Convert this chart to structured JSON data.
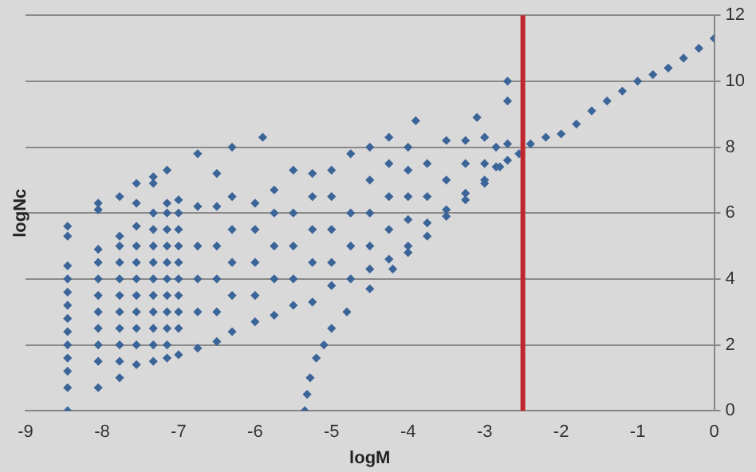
{
  "chart_data": {
    "type": "scatter",
    "xlabel": "logM",
    "ylabel": "logNc",
    "color": "#3b6498",
    "marker": "diamond",
    "grid": "y",
    "xlim": [
      -9,
      0
    ],
    "xticks": [
      -9,
      -8,
      -7,
      -6,
      -5,
      -4,
      -3,
      -2,
      -1,
      0
    ],
    "ylim": [
      0,
      12
    ],
    "yticks": [
      0,
      2,
      4,
      6,
      8,
      10,
      12
    ],
    "ref_lines": [
      {
        "axis": "x",
        "value": -2.5,
        "color": "#c0272d"
      }
    ],
    "x": [
      -8.45,
      -8.45,
      -8.45,
      -8.45,
      -8.45,
      -8.45,
      -8.45,
      -8.45,
      -8.45,
      -8.45,
      -8.45,
      -8.45,
      -8.45,
      -8.05,
      -8.05,
      -8.05,
      -8.05,
      -8.05,
      -8.05,
      -8.05,
      -8.05,
      -8.05,
      -8.05,
      -8.05,
      -7.77,
      -7.77,
      -7.77,
      -7.77,
      -7.77,
      -7.77,
      -7.77,
      -7.77,
      -7.77,
      -7.77,
      -7.77,
      -7.55,
      -7.55,
      -7.55,
      -7.55,
      -7.55,
      -7.55,
      -7.55,
      -7.55,
      -7.55,
      -7.55,
      -7.55,
      -7.33,
      -7.33,
      -7.33,
      -7.33,
      -7.33,
      -7.33,
      -7.33,
      -7.33,
      -7.33,
      -7.33,
      -7.33,
      -7.33,
      -7.15,
      -7.15,
      -7.15,
      -7.15,
      -7.15,
      -7.15,
      -7.15,
      -7.15,
      -7.15,
      -7.15,
      -7.15,
      -7.15,
      -7,
      -7,
      -7,
      -7,
      -7,
      -7,
      -7,
      -7,
      -7,
      -7,
      -6.75,
      -6.75,
      -6.75,
      -6.75,
      -6.75,
      -6.75,
      -6.5,
      -6.5,
      -6.5,
      -6.5,
      -6.5,
      -6.5,
      -6.3,
      -6.3,
      -6.3,
      -6.3,
      -6.3,
      -6.3,
      -6,
      -6,
      -6,
      -6,
      -6,
      -5.9,
      -5.75,
      -5.75,
      -5.75,
      -5.75,
      -5.75,
      -5.5,
      -5.5,
      -5.5,
      -5.5,
      -5.5,
      -5.25,
      -5.25,
      -5.25,
      -5.25,
      -5.25,
      -5,
      -5,
      -5,
      -5,
      -5,
      -4.75,
      -4.75,
      -4.75,
      -4.75,
      -4.5,
      -4.5,
      -4.5,
      -4.5,
      -4.5,
      -4.25,
      -4.25,
      -4.25,
      -4.25,
      -4.25,
      -4,
      -4,
      -4,
      -4,
      -4,
      -3.9,
      -3.75,
      -3.75,
      -3.75,
      -3.5,
      -3.5,
      -3.5,
      -3.25,
      -3.25,
      -3.25,
      -3.1,
      -3,
      -3,
      -3,
      -2.85,
      -2.85,
      -2.7,
      -2.7,
      -2.7,
      -2.7,
      -5.35,
      -5.32,
      -5.28,
      -5.2,
      -5.1,
      -5,
      -4.8,
      -4.5,
      -4.2,
      -4,
      -3.75,
      -3.5,
      -3.25,
      -3,
      -2.8,
      -2.55,
      -2.4,
      -2.2,
      -2,
      -1.8,
      -1.6,
      -1.4,
      -1.2,
      -1,
      -0.8,
      -0.6,
      -0.4,
      -0.2,
      0
    ],
    "values": [
      0,
      0.7,
      1.2,
      1.6,
      2,
      2.4,
      2.8,
      3.2,
      3.6,
      4,
      4.4,
      5.3,
      5.6,
      0.7,
      1.5,
      2,
      2.5,
      3,
      3.5,
      4,
      4.5,
      4.9,
      6.1,
      6.3,
      1,
      1.5,
      2,
      2.5,
      3,
      3.5,
      4,
      4.5,
      5,
      5.3,
      6.5,
      1.4,
      2,
      2.5,
      3,
      3.5,
      4,
      4.5,
      5,
      5.6,
      6.3,
      6.9,
      1.5,
      2,
      2.5,
      3,
      3.5,
      4,
      4.5,
      5,
      5.5,
      6,
      6.9,
      7.1,
      1.6,
      2,
      2.5,
      3,
      3.5,
      4,
      4.5,
      5,
      5.5,
      6,
      6.3,
      7.3,
      1.7,
      2.5,
      3,
      3.5,
      4,
      4.5,
      5,
      5.5,
      6,
      6.4,
      1.9,
      3,
      4,
      5,
      6.2,
      7.8,
      2.1,
      3,
      4,
      5,
      6.2,
      7.2,
      2.4,
      3.5,
      4.5,
      5.5,
      6.5,
      8,
      2.7,
      3.5,
      4.5,
      5.5,
      6.3,
      8.3,
      2.9,
      4,
      5,
      6,
      6.7,
      3.2,
      4,
      5,
      6,
      7.3,
      3.3,
      4.5,
      5.5,
      6.5,
      7.2,
      3.8,
      4.5,
      5.5,
      6.5,
      7.3,
      4,
      5,
      6,
      7.8,
      4.3,
      5,
      6,
      7,
      8,
      4.6,
      5.5,
      6.5,
      7.5,
      8.3,
      5,
      5.8,
      6.5,
      7.3,
      8,
      8.8,
      5.7,
      6.5,
      7.5,
      6.1,
      7,
      8.2,
      6.6,
      7.5,
      8.2,
      8.9,
      7,
      7.5,
      8.3,
      7.4,
      8,
      7.6,
      8.1,
      9.4,
      10,
      0,
      0.5,
      1,
      1.6,
      2,
      2.5,
      3,
      3.7,
      4.3,
      4.8,
      5.3,
      5.9,
      6.4,
      6.9,
      7.4,
      7.8,
      8.1,
      8.3,
      8.4,
      8.7,
      9.1,
      9.4,
      9.7,
      10,
      10.2,
      10.4,
      10.7,
      11,
      11.3
    ]
  }
}
